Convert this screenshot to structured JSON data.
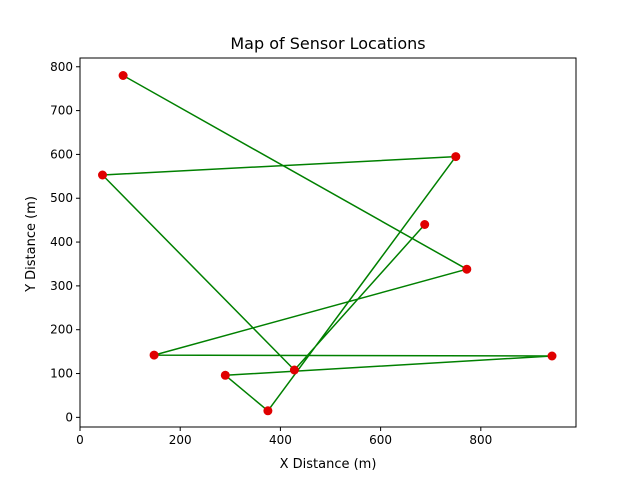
{
  "chart_data": {
    "type": "line",
    "title": "Map of Sensor Locations",
    "xlabel": "X Distance (m)",
    "ylabel": "Y Distance (m)",
    "xlim": [
      0,
      990
    ],
    "ylim": [
      -22,
      820
    ],
    "xticks": [
      0,
      200,
      400,
      600,
      800
    ],
    "yticks": [
      0,
      100,
      200,
      300,
      400,
      500,
      600,
      700,
      800
    ],
    "grid": false,
    "line_color": "#008000",
    "marker_color": "#e00000",
    "points": [
      {
        "x": 86,
        "y": 780
      },
      {
        "x": 772,
        "y": 338
      },
      {
        "x": 148,
        "y": 142
      },
      {
        "x": 942,
        "y": 140
      },
      {
        "x": 428,
        "y": 108
      },
      {
        "x": 750,
        "y": 595
      },
      {
        "x": 45,
        "y": 553
      },
      {
        "x": 290,
        "y": 96
      },
      {
        "x": 375,
        "y": 15
      },
      {
        "x": 688,
        "y": 440
      }
    ],
    "path": [
      0,
      1,
      2,
      3,
      7,
      8,
      5,
      6,
      4,
      9
    ]
  }
}
